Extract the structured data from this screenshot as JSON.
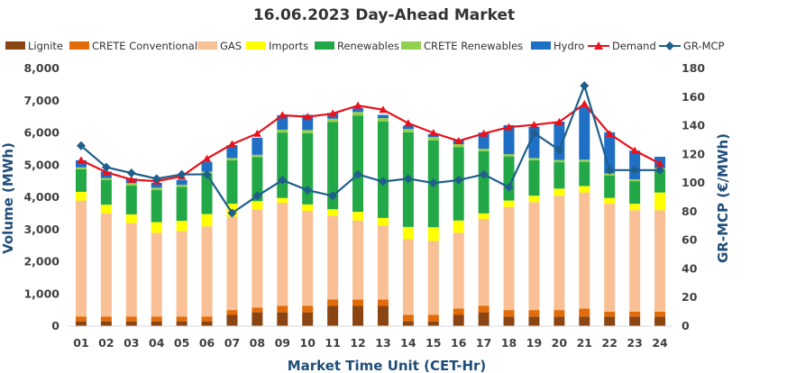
{
  "chart_data": {
    "type": "bar",
    "title": "16.06.2023  Day-Ahead Market",
    "xlabel": "Market Time Unit (CET-Hr)",
    "ylabel": "Volume (MWh)",
    "y2label": "GR-MCP (€/MWh)",
    "ylim": [
      0,
      8000
    ],
    "y2lim": [
      0,
      180
    ],
    "yticks": [
      "0",
      "1,000",
      "2,000",
      "3,000",
      "4,000",
      "5,000",
      "6,000",
      "7,000",
      "8,000"
    ],
    "y2ticks": [
      "0",
      "20",
      "40",
      "60",
      "80",
      "100",
      "120",
      "140",
      "160",
      "180"
    ],
    "categories": [
      "01",
      "02",
      "03",
      "04",
      "05",
      "06",
      "07",
      "08",
      "09",
      "10",
      "11",
      "12",
      "13",
      "14",
      "15",
      "16",
      "17",
      "18",
      "19",
      "20",
      "21",
      "22",
      "23",
      "24"
    ],
    "colors": {
      "Lignite": "#8B4513",
      "CRETE Conventional": "#E36C09",
      "GAS": "#F9C095",
      "Imports": "#FFFF00",
      "Renewables": "#22A846",
      "CRETE Renewables": "#92D050",
      "Hydro": "#1F6FC5",
      "Demand": "#E8111C",
      "GR-MCP": "#1F5F8B"
    },
    "series": [
      {
        "name": "Lignite",
        "kind": "bar",
        "values": [
          150,
          150,
          150,
          150,
          150,
          150,
          350,
          430,
          430,
          430,
          630,
          630,
          630,
          150,
          150,
          350,
          430,
          300,
          300,
          300,
          300,
          300,
          300,
          300
        ]
      },
      {
        "name": "CRETE Conventional",
        "kind": "bar",
        "values": [
          150,
          150,
          150,
          150,
          150,
          150,
          150,
          150,
          200,
          200,
          200,
          200,
          200,
          200,
          200,
          200,
          200,
          200,
          200,
          200,
          250,
          150,
          150,
          150
        ]
      },
      {
        "name": "GAS",
        "kind": "bar",
        "values": [
          3600,
          3200,
          2900,
          2600,
          2650,
          2800,
          2900,
          3050,
          3200,
          2950,
          2600,
          2450,
          2300,
          2350,
          2300,
          2350,
          2700,
          3200,
          3350,
          3550,
          3600,
          3350,
          3150,
          3150
        ]
      },
      {
        "name": "Imports",
        "kind": "bar",
        "values": [
          270,
          270,
          270,
          330,
          320,
          380,
          400,
          250,
          150,
          200,
          200,
          270,
          230,
          380,
          420,
          380,
          170,
          200,
          200,
          220,
          200,
          180,
          200,
          550
        ]
      },
      {
        "name": "Renewables",
        "kind": "bar",
        "values": [
          700,
          770,
          900,
          1000,
          1050,
          1250,
          1350,
          1370,
          2030,
          2210,
          2710,
          2990,
          2990,
          2940,
          2700,
          2280,
          1930,
          1370,
          1100,
          820,
          750,
          700,
          700,
          700
        ]
      },
      {
        "name": "CRETE Renewables",
        "kind": "bar",
        "values": [
          60,
          60,
          70,
          70,
          70,
          70,
          70,
          70,
          90,
          100,
          100,
          110,
          110,
          100,
          100,
          90,
          80,
          70,
          70,
          70,
          70,
          60,
          60,
          60
        ]
      },
      {
        "name": "Hydro",
        "kind": "bar",
        "values": [
          220,
          200,
          150,
          150,
          150,
          300,
          400,
          530,
          450,
          470,
          180,
          120,
          100,
          100,
          100,
          150,
          500,
          900,
          970,
          1190,
          1630,
          1280,
          890,
          350
        ]
      },
      {
        "name": "Demand",
        "kind": "line",
        "axis": "left",
        "values": [
          5150,
          4780,
          4550,
          4500,
          4650,
          5200,
          5650,
          5980,
          6550,
          6500,
          6600,
          6850,
          6720,
          6300,
          6000,
          5750,
          5980,
          6180,
          6250,
          6340,
          6900,
          5970,
          5450,
          5050
        ]
      },
      {
        "name": "GR-MCP",
        "kind": "line",
        "axis": "right",
        "values": [
          126,
          111,
          107,
          103,
          106,
          106,
          79,
          91,
          102,
          95,
          91,
          106,
          101,
          103,
          100,
          102,
          106,
          97,
          135,
          123,
          168,
          109,
          109,
          109
        ]
      }
    ],
    "legend": [
      "Lignite",
      "CRETE Conventional",
      "GAS",
      "Imports",
      "Renewables",
      "CRETE Renewables",
      "Hydro",
      "Demand",
      "GR-MCP"
    ],
    "legend_position": "top",
    "grid": false
  }
}
